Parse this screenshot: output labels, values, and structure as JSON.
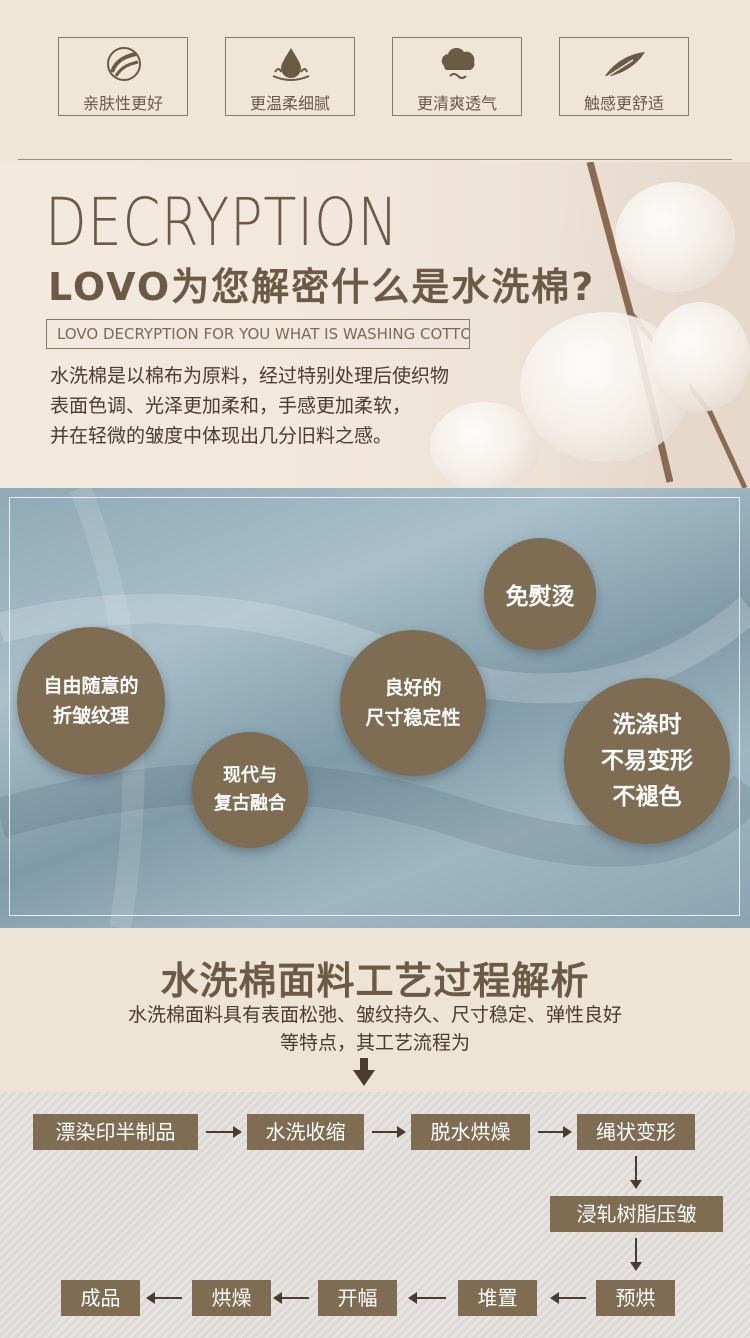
{
  "features": [
    {
      "icon": "sparkle-skin-icon",
      "label": "亲肤性更好"
    },
    {
      "icon": "water-drop-icon",
      "label": "更温柔细腻"
    },
    {
      "icon": "cloud-icon",
      "label": "更清爽透气"
    },
    {
      "icon": "feather-icon",
      "label": "触感更舒适"
    }
  ],
  "decryption": {
    "heading": "DECRYPTION",
    "title": "LOVO为您解密什么是水洗棉?",
    "subtitle": "LOVO DECRYPTION FOR YOU WHAT IS WASHING COTTON?",
    "body": [
      "水洗棉是以棉布为原料，经过特别处理后使织物",
      "表面色调、光泽更加柔和，手感更加柔软，",
      "并在轻微的皱度中体现出几分旧料之感。"
    ]
  },
  "benefits": [
    {
      "lines": [
        "免熨烫"
      ]
    },
    {
      "lines": [
        "自由随意的",
        "折皱纹理"
      ]
    },
    {
      "lines": [
        "良好的",
        "尺寸稳定性"
      ]
    },
    {
      "lines": [
        "洗涤时",
        "不易变形",
        "不褪色"
      ]
    },
    {
      "lines": [
        "现代与",
        "复古融合"
      ]
    }
  ],
  "process": {
    "title": "水洗棉面料工艺过程解析",
    "desc": [
      "水洗棉面料具有表面松弛、皱纹持久、尺寸稳定、弹性良好",
      "等特点，其工艺流程为"
    ],
    "steps": [
      "漂染印半制品",
      "水洗收缩",
      "脱水烘燥",
      "绳状变形",
      "浸轧树脂压皱",
      "预烘",
      "堆置",
      "开幅",
      "烘燥",
      "成品"
    ]
  },
  "colors": {
    "accent": "#7e6c53",
    "text": "#4a3c2e",
    "background": "#ede4d6"
  }
}
